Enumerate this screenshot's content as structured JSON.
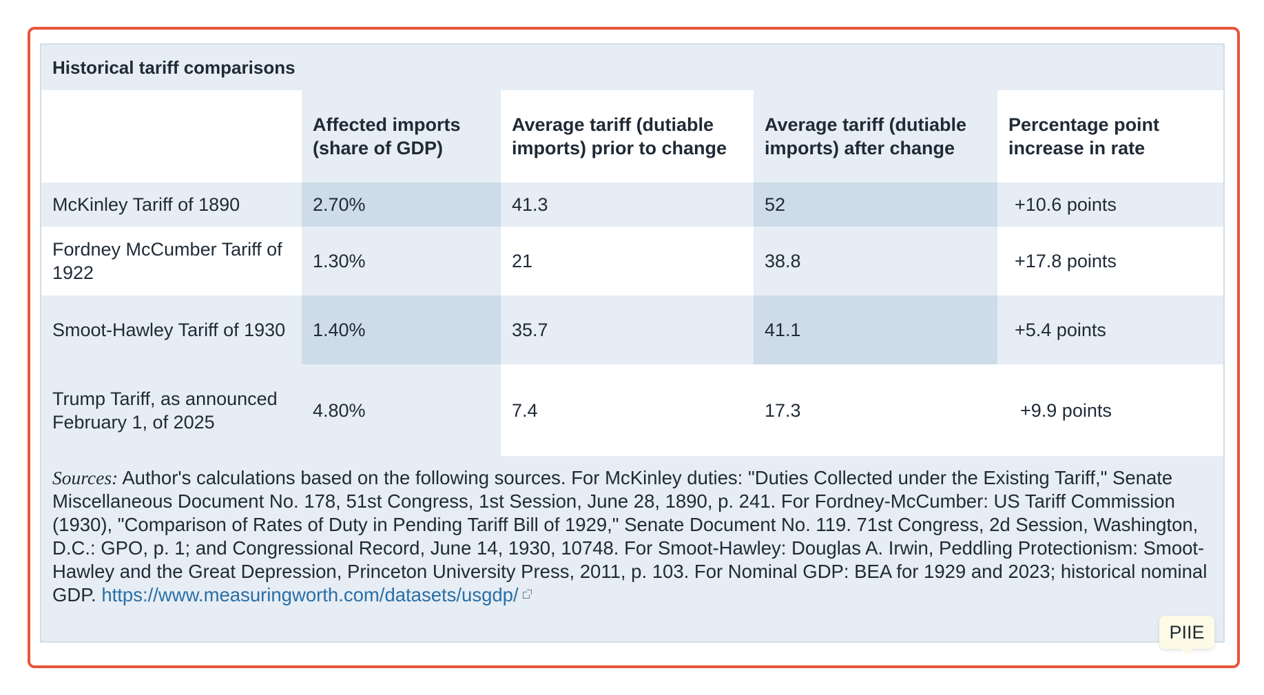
{
  "table": {
    "caption": "Historical tariff comparisons",
    "headers": [
      "",
      "Affected imports (share of GDP)",
      "Average tariff (dutiable imports) prior to change",
      "Average tariff (dutiable imports) after change",
      "Percentage point increase in rate"
    ],
    "rows": [
      {
        "name": "McKinley Tariff of 1890",
        "affected_imports": "2.70%",
        "tariff_prior": "41.3",
        "tariff_after": "52",
        "increase": "+10.6 points"
      },
      {
        "name": "Fordney McCumber Tariff of 1922",
        "affected_imports": "1.30%",
        "tariff_prior": "21",
        "tariff_after": "38.8",
        "increase": "+17.8 points"
      },
      {
        "name": "Smoot-Hawley Tariff of 1930",
        "affected_imports": "1.40%",
        "tariff_prior": "35.7",
        "tariff_after": "41.1",
        "increase": "+5.4 points"
      },
      {
        "name": "Trump Tariff, as announced February 1, of 2025",
        "affected_imports": "4.80%",
        "tariff_prior": "7.4",
        "tariff_after": "17.3",
        "increase": "+9.9 points"
      }
    ]
  },
  "sources": {
    "label": "Sources:",
    "text": " Author's calculations based on the following sources. For McKinley duties: \"Duties Collected under the Existing Tariff,\" Senate Miscellaneous Document No. 178, 51st Congress, 1st Session, June 28, 1890, p. 241. For Fordney-McCumber: US Tariff Commission (1930), \"Comparison of Rates of Duty in Pending Tariff Bill of 1929,\" Senate Document No. 119. 71st Congress, 2d Session, Washington, D.C.: GPO, p. 1; and Congressional Record, June 14, 1930, 10748. For Smoot-Hawley: Douglas A. Irwin, Peddling Protectionism: Smoot-Hawley and the Great Depression, Princeton University Press, 2011, p. 103. For Nominal GDP: BEA for 1929 and 2023; historical nominal GDP. ",
    "link_text": "https://www.measuringworth.com/datasets/usgdp/",
    "link_icon": "external-link-icon"
  },
  "badge": {
    "text": "PIIE"
  },
  "colors": {
    "frame_border": "#e8543b",
    "panel_bg": "#e6edf4",
    "column_highlight": "#cddce8",
    "link": "#2a6ea6"
  }
}
